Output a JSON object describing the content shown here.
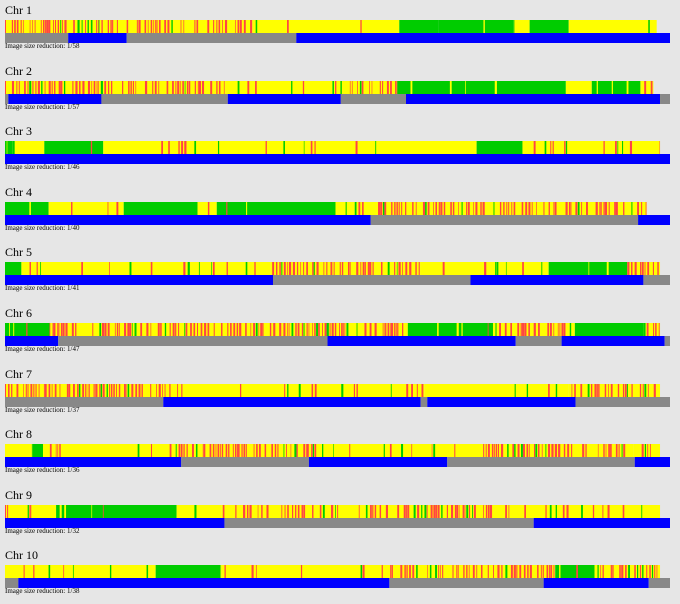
{
  "palette": {
    "page_background": "#e6e6e6",
    "homozygous_match": "#00cc00",
    "mixed": "#ffff00",
    "mismatch": "#ff4444",
    "segment_blue": "#0000ff",
    "segment_gray": "#888888"
  },
  "chromosomes": [
    {
      "title": "Chr 1",
      "note": "Image size reduction: 1/58",
      "seed": 11,
      "regions": [
        {
          "from": 0.0,
          "to": 0.38,
          "kind": "red"
        },
        {
          "from": 0.38,
          "to": 0.605,
          "kind": "yellow"
        },
        {
          "from": 0.605,
          "to": 0.665,
          "kind": "green"
        },
        {
          "from": 0.665,
          "to": 0.78,
          "kind": "green"
        },
        {
          "from": 0.78,
          "to": 0.805,
          "kind": "yellow"
        },
        {
          "from": 0.805,
          "to": 0.865,
          "kind": "green"
        },
        {
          "from": 0.865,
          "to": 1.0,
          "kind": "yellow"
        }
      ],
      "segments": [
        {
          "from": 0.0,
          "to": 0.095,
          "color": "gray"
        },
        {
          "from": 0.095,
          "to": 0.183,
          "color": "blue"
        },
        {
          "from": 0.183,
          "to": 0.438,
          "color": "gray"
        },
        {
          "from": 0.438,
          "to": 1.0,
          "color": "blue"
        }
      ],
      "bar_span": [
        0.0,
        0.98
      ]
    },
    {
      "title": "Chr 2",
      "note": "Image size reduction: 1/57",
      "seed": 23,
      "regions": [
        {
          "from": 0.0,
          "to": 0.34,
          "kind": "red"
        },
        {
          "from": 0.34,
          "to": 0.505,
          "kind": "yellow"
        },
        {
          "from": 0.505,
          "to": 0.605,
          "kind": "red"
        },
        {
          "from": 0.605,
          "to": 0.865,
          "kind": "green"
        },
        {
          "from": 0.865,
          "to": 0.905,
          "kind": "yellow"
        },
        {
          "from": 0.905,
          "to": 0.98,
          "kind": "green"
        },
        {
          "from": 0.98,
          "to": 1.0,
          "kind": "red"
        }
      ],
      "segments": [
        {
          "from": 0.0,
          "to": 0.005,
          "color": "gray"
        },
        {
          "from": 0.005,
          "to": 0.145,
          "color": "blue"
        },
        {
          "from": 0.145,
          "to": 0.335,
          "color": "gray"
        },
        {
          "from": 0.335,
          "to": 0.505,
          "color": "blue"
        },
        {
          "from": 0.505,
          "to": 0.603,
          "color": "gray"
        },
        {
          "from": 0.603,
          "to": 0.985,
          "color": "blue"
        },
        {
          "from": 0.985,
          "to": 1.0,
          "color": "gray"
        }
      ],
      "bar_span": [
        0.0,
        0.975
      ]
    },
    {
      "title": "Chr 3",
      "note": "Image size reduction: 1/46",
      "seed": 37,
      "regions": [
        {
          "from": 0.0,
          "to": 0.012,
          "kind": "green"
        },
        {
          "from": 0.012,
          "to": 0.06,
          "kind": "yellow"
        },
        {
          "from": 0.06,
          "to": 0.15,
          "kind": "green"
        },
        {
          "from": 0.15,
          "to": 0.72,
          "kind": "yellow"
        },
        {
          "from": 0.72,
          "to": 0.79,
          "kind": "green"
        },
        {
          "from": 0.79,
          "to": 1.0,
          "kind": "yellow"
        }
      ],
      "segments": [
        {
          "from": 0.0,
          "to": 1.0,
          "color": "blue"
        }
      ],
      "bar_span": [
        0.0,
        0.985
      ]
    },
    {
      "title": "Chr 4",
      "note": "Image size reduction: 1/40",
      "seed": 41,
      "regions": [
        {
          "from": 0.0,
          "to": 0.068,
          "kind": "green"
        },
        {
          "from": 0.068,
          "to": 0.185,
          "kind": "yellow"
        },
        {
          "from": 0.185,
          "to": 0.3,
          "kind": "green"
        },
        {
          "from": 0.3,
          "to": 0.33,
          "kind": "yellow"
        },
        {
          "from": 0.33,
          "to": 0.515,
          "kind": "green"
        },
        {
          "from": 0.515,
          "to": 0.545,
          "kind": "yellow"
        },
        {
          "from": 0.545,
          "to": 1.0,
          "kind": "red"
        }
      ],
      "segments": [
        {
          "from": 0.0,
          "to": 0.55,
          "color": "blue"
        },
        {
          "from": 0.55,
          "to": 0.952,
          "color": "gray"
        },
        {
          "from": 0.952,
          "to": 1.0,
          "color": "blue"
        }
      ],
      "bar_span": [
        0.0,
        0.965
      ]
    },
    {
      "title": "Chr 5",
      "note": "Image size reduction: 1/41",
      "seed": 53,
      "regions": [
        {
          "from": 0.0,
          "to": 0.025,
          "kind": "green"
        },
        {
          "from": 0.025,
          "to": 0.405,
          "kind": "yellow"
        },
        {
          "from": 0.405,
          "to": 0.635,
          "kind": "red"
        },
        {
          "from": 0.635,
          "to": 0.83,
          "kind": "yellow"
        },
        {
          "from": 0.83,
          "to": 0.95,
          "kind": "green"
        },
        {
          "from": 0.95,
          "to": 1.0,
          "kind": "red"
        }
      ],
      "segments": [
        {
          "from": 0.0,
          "to": 0.403,
          "color": "blue"
        },
        {
          "from": 0.403,
          "to": 0.7,
          "color": "gray"
        },
        {
          "from": 0.7,
          "to": 0.96,
          "color": "blue"
        },
        {
          "from": 0.96,
          "to": 1.0,
          "color": "gray"
        }
      ],
      "bar_span": [
        0.0,
        0.985
      ]
    },
    {
      "title": "Chr 6",
      "note": "Image size reduction: 1/47",
      "seed": 67,
      "regions": [
        {
          "from": 0.0,
          "to": 0.068,
          "kind": "green"
        },
        {
          "from": 0.068,
          "to": 0.615,
          "kind": "red"
        },
        {
          "from": 0.615,
          "to": 0.745,
          "kind": "green"
        },
        {
          "from": 0.745,
          "to": 0.87,
          "kind": "red"
        },
        {
          "from": 0.87,
          "to": 0.975,
          "kind": "green"
        },
        {
          "from": 0.975,
          "to": 1.0,
          "kind": "red"
        }
      ],
      "segments": [
        {
          "from": 0.0,
          "to": 0.08,
          "color": "blue"
        },
        {
          "from": 0.08,
          "to": 0.485,
          "color": "gray"
        },
        {
          "from": 0.485,
          "to": 0.768,
          "color": "blue"
        },
        {
          "from": 0.768,
          "to": 0.837,
          "color": "gray"
        },
        {
          "from": 0.837,
          "to": 0.992,
          "color": "blue"
        },
        {
          "from": 0.992,
          "to": 1.0,
          "color": "gray"
        }
      ],
      "bar_span": [
        0.0,
        0.985
      ]
    },
    {
      "title": "Chr 7",
      "note": "Image size reduction: 1/37",
      "seed": 79,
      "regions": [
        {
          "from": 0.0,
          "to": 0.245,
          "kind": "red"
        },
        {
          "from": 0.245,
          "to": 0.62,
          "kind": "yellow"
        },
        {
          "from": 0.62,
          "to": 0.64,
          "kind": "red"
        },
        {
          "from": 0.64,
          "to": 0.86,
          "kind": "yellow"
        },
        {
          "from": 0.86,
          "to": 1.0,
          "kind": "red"
        }
      ],
      "segments": [
        {
          "from": 0.0,
          "to": 0.238,
          "color": "gray"
        },
        {
          "from": 0.238,
          "to": 0.625,
          "color": "blue"
        },
        {
          "from": 0.625,
          "to": 0.635,
          "color": "gray"
        },
        {
          "from": 0.635,
          "to": 0.858,
          "color": "blue"
        },
        {
          "from": 0.858,
          "to": 1.0,
          "color": "gray"
        }
      ],
      "bar_span": [
        0.0,
        0.985
      ]
    },
    {
      "title": "Chr 8",
      "note": "Image size reduction: 1/36",
      "seed": 83,
      "regions": [
        {
          "from": 0.0,
          "to": 0.04,
          "kind": "yellow"
        },
        {
          "from": 0.04,
          "to": 0.058,
          "kind": "green"
        },
        {
          "from": 0.058,
          "to": 0.265,
          "kind": "yellow"
        },
        {
          "from": 0.265,
          "to": 0.47,
          "kind": "red"
        },
        {
          "from": 0.47,
          "to": 0.73,
          "kind": "yellow"
        },
        {
          "from": 0.73,
          "to": 0.96,
          "kind": "red"
        },
        {
          "from": 0.96,
          "to": 1.0,
          "kind": "yellow"
        }
      ],
      "segments": [
        {
          "from": 0.0,
          "to": 0.265,
          "color": "blue"
        },
        {
          "from": 0.265,
          "to": 0.457,
          "color": "gray"
        },
        {
          "from": 0.457,
          "to": 0.665,
          "color": "blue"
        },
        {
          "from": 0.665,
          "to": 0.947,
          "color": "gray"
        },
        {
          "from": 0.947,
          "to": 1.0,
          "color": "blue"
        }
      ],
      "bar_span": [
        0.0,
        0.985
      ]
    },
    {
      "title": "Chr 9",
      "note": "Image size reduction: 1/32",
      "seed": 97,
      "regions": [
        {
          "from": 0.0,
          "to": 0.078,
          "kind": "yellow"
        },
        {
          "from": 0.078,
          "to": 0.262,
          "kind": "green"
        },
        {
          "from": 0.262,
          "to": 0.33,
          "kind": "yellow"
        },
        {
          "from": 0.33,
          "to": 0.77,
          "kind": "red"
        },
        {
          "from": 0.77,
          "to": 1.0,
          "kind": "yellow"
        }
      ],
      "segments": [
        {
          "from": 0.0,
          "to": 0.33,
          "color": "blue"
        },
        {
          "from": 0.33,
          "to": 0.795,
          "color": "gray"
        },
        {
          "from": 0.795,
          "to": 1.0,
          "color": "blue"
        }
      ],
      "bar_span": [
        0.0,
        0.985
      ]
    },
    {
      "title": "Chr 10",
      "note": "Image size reduction: 1/38",
      "seed": 101,
      "regions": [
        {
          "from": 0.0,
          "to": 0.23,
          "kind": "yellow"
        },
        {
          "from": 0.23,
          "to": 0.33,
          "kind": "green"
        },
        {
          "from": 0.33,
          "to": 0.575,
          "kind": "yellow"
        },
        {
          "from": 0.575,
          "to": 0.84,
          "kind": "red"
        },
        {
          "from": 0.84,
          "to": 0.9,
          "kind": "green"
        },
        {
          "from": 0.9,
          "to": 1.0,
          "kind": "red"
        }
      ],
      "segments": [
        {
          "from": 0.0,
          "to": 0.02,
          "color": "gray"
        },
        {
          "from": 0.02,
          "to": 0.578,
          "color": "blue"
        },
        {
          "from": 0.578,
          "to": 0.81,
          "color": "gray"
        },
        {
          "from": 0.81,
          "to": 0.968,
          "color": "blue"
        },
        {
          "from": 0.968,
          "to": 1.0,
          "color": "gray"
        }
      ],
      "bar_span": [
        0.0,
        0.985
      ]
    }
  ]
}
